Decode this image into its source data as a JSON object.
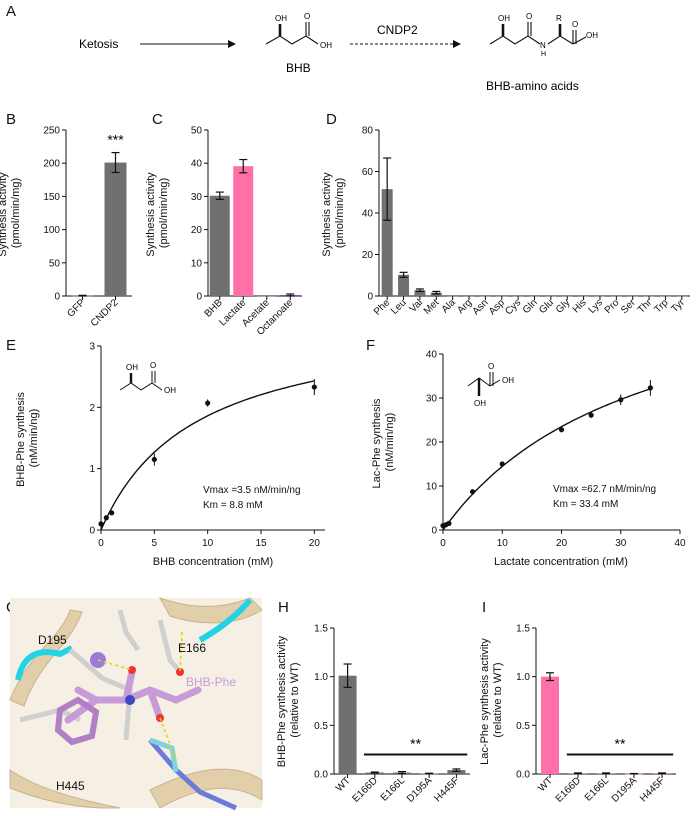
{
  "panels": {
    "A": {
      "letter": "A",
      "start_label": "Ketosis",
      "middle_label": "BHB",
      "enzyme_label": "CNDP2",
      "end_label": "BHB-amino acids",
      "atom_OH_1": "OH",
      "atom_O_1": "O",
      "atom_OH_acid_1": "OH",
      "atom_OH_2": "OH",
      "atom_O_2": "O",
      "atom_N": "N",
      "atom_H": "H",
      "atom_R": "R",
      "atom_O_3": "O",
      "atom_OH_acid_2": "OH"
    },
    "B": {
      "letter": "B"
    },
    "C": {
      "letter": "C"
    },
    "D": {
      "letter": "D"
    },
    "E": {
      "letter": "E",
      "vmax_text": "Vmax =3.5 nM/min/ng",
      "km_text": "Km = 8.8 mM",
      "atom_OH": "OH",
      "atom_O": "O",
      "atom_OH_acid": "OH"
    },
    "F": {
      "letter": "F",
      "vmax_text": "Vmax =62.7 nM/min/ng",
      "km_text": "Km = 33.4 mM",
      "atom_O": "O",
      "atom_OH_acid": "OH",
      "atom_OH": "OH"
    },
    "G": {
      "letter": "G",
      "label_d195": "D195",
      "label_e166": "E166",
      "label_ligand": "BHB-Phe",
      "label_h445": "H445"
    },
    "H": {
      "letter": "H"
    },
    "I": {
      "letter": "I"
    }
  },
  "colors": {
    "gray_bar": "#707070",
    "pink_bar": "#ff6fa8",
    "purple_bar": "#9c3fb5",
    "ligand": "#c79ad8",
    "helix_cyan": "#22d3e6",
    "ribbon": "#e8d7b4"
  },
  "chart_data": [
    {
      "id": "B",
      "type": "bar",
      "categories": [
        "GFP",
        "CNDP2"
      ],
      "values": [
        0.5,
        201
      ],
      "errors": [
        0.5,
        15
      ],
      "ylabel": "Synthesis activity\n(pmol/min/mg)",
      "ylim": [
        0,
        250
      ],
      "yticks": [
        0,
        50,
        100,
        150,
        200,
        250
      ],
      "annotation": "***"
    },
    {
      "id": "C",
      "type": "bar",
      "categories": [
        "BHB",
        "Lactate",
        "Acetate",
        "Octanoate"
      ],
      "values": [
        30.2,
        39.1,
        0,
        0.3
      ],
      "errors": [
        1.1,
        2,
        0,
        0.3
      ],
      "ylabel": "Synthesis activity\n(pmol/min/mg)",
      "ylim": [
        0,
        50
      ],
      "yticks": [
        0,
        10,
        20,
        30,
        40,
        50
      ]
    },
    {
      "id": "D",
      "type": "bar",
      "categories": [
        "Phe",
        "Leu",
        "Val",
        "Met",
        "Ala",
        "Arg",
        "Asn",
        "Asp",
        "Cys",
        "Gln",
        "Glu",
        "Gly",
        "His",
        "Lys",
        "Pro",
        "Ser",
        "Thr",
        "Trp",
        "Tyr"
      ],
      "values": [
        51.5,
        10.2,
        2.8,
        1.6,
        0,
        0,
        0,
        0,
        0,
        0,
        0,
        0,
        0,
        0,
        0,
        0,
        0,
        0,
        0
      ],
      "errors": [
        15,
        1.2,
        0.6,
        0.6,
        0,
        0,
        0,
        0,
        0,
        0,
        0,
        0,
        0,
        0,
        0,
        0,
        0,
        0,
        0
      ],
      "ylabel": "Synthesis activity\n(pmol/min/mg)",
      "ylim": [
        0,
        80
      ],
      "yticks": [
        0,
        20,
        40,
        60,
        80
      ]
    },
    {
      "id": "E",
      "type": "scatter",
      "x": [
        0,
        0.5,
        1,
        5,
        10,
        20
      ],
      "y": [
        0.1,
        0.2,
        0.28,
        1.15,
        2.07,
        2.33
      ],
      "yerr": [
        0.02,
        0.03,
        0.03,
        0.1,
        0.06,
        0.13
      ],
      "fit": {
        "model": "michaelis-menten",
        "vmax": 3.5,
        "km": 8.8
      },
      "xlabel": "BHB concentration (mM)",
      "ylabel": "BHB-Phe synthesis\n(nM/min/ng)",
      "xlim": [
        0,
        21
      ],
      "ylim": [
        0,
        3
      ],
      "xticks": [
        0,
        5,
        10,
        15,
        20
      ],
      "yticks": [
        0,
        1,
        2,
        3
      ]
    },
    {
      "id": "F",
      "type": "scatter",
      "x": [
        0,
        0.5,
        1,
        5,
        10,
        20,
        25,
        30,
        35
      ],
      "y": [
        1,
        1.2,
        1.5,
        8.7,
        15,
        22.8,
        26.1,
        29.6,
        32.3
      ],
      "yerr": [
        0.2,
        0.2,
        0.2,
        0.4,
        0.5,
        0.6,
        0.6,
        1.2,
        1.8
      ],
      "fit": {
        "model": "michaelis-menten",
        "vmax": 62.7,
        "km": 33.4
      },
      "xlabel": "Lactate concentration (mM)",
      "ylabel": "Lac-Phe synthesis\n(nM/min/ng)",
      "xlim": [
        0,
        40
      ],
      "ylim": [
        0,
        40
      ],
      "xticks": [
        0,
        10,
        20,
        30,
        40
      ],
      "yticks": [
        0,
        10,
        20,
        30,
        40
      ]
    },
    {
      "id": "H",
      "type": "bar",
      "categories": [
        "WT",
        "E166D",
        "E166L",
        "D195A",
        "H445F"
      ],
      "values": [
        1.01,
        0.015,
        0.015,
        0.005,
        0.04
      ],
      "errors": [
        0.12,
        0.005,
        0.01,
        0.003,
        0.012
      ],
      "ylabel": "BHB-Phe synthesis activity\n(relative to WT)",
      "ylim": [
        0,
        1.5
      ],
      "yticks": [
        "0.0",
        "0.5",
        "1.0",
        "1.5"
      ],
      "annotation": "**"
    },
    {
      "id": "I",
      "type": "bar",
      "categories": [
        "WT",
        "E166D",
        "E166L",
        "D195A",
        "H445F"
      ],
      "values": [
        1.0,
        0.008,
        0.008,
        0.003,
        0.008
      ],
      "errors": [
        0.04,
        0.003,
        0.003,
        0.002,
        0.003
      ],
      "ylabel": "Lac-Phe synthesis activity\n(relative to WT)",
      "ylim": [
        0,
        1.5
      ],
      "yticks": [
        "0.0",
        "0.5",
        "1.0",
        "1.5"
      ],
      "annotation": "**"
    }
  ]
}
